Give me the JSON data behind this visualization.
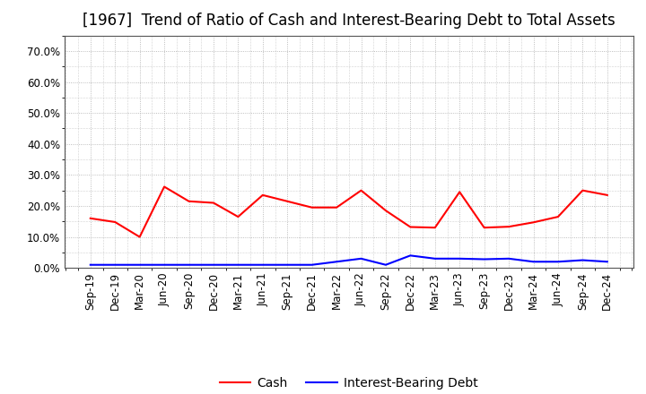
{
  "title": "[1967]  Trend of Ratio of Cash and Interest-Bearing Debt to Total Assets",
  "x_labels": [
    "Sep-19",
    "Dec-19",
    "Mar-20",
    "Jun-20",
    "Sep-20",
    "Dec-20",
    "Mar-21",
    "Jun-21",
    "Sep-21",
    "Dec-21",
    "Mar-22",
    "Jun-22",
    "Sep-22",
    "Dec-22",
    "Mar-23",
    "Jun-23",
    "Sep-23",
    "Dec-23",
    "Mar-24",
    "Jun-24",
    "Sep-24",
    "Dec-24"
  ],
  "cash": [
    0.16,
    0.148,
    0.1,
    0.262,
    0.215,
    0.21,
    0.165,
    0.235,
    0.215,
    0.195,
    0.195,
    0.25,
    0.185,
    0.132,
    0.13,
    0.245,
    0.13,
    0.133,
    0.147,
    0.165,
    0.25,
    0.235
  ],
  "interest_bearing_debt": [
    0.01,
    0.01,
    0.01,
    0.01,
    0.01,
    0.01,
    0.01,
    0.01,
    0.01,
    0.01,
    0.02,
    0.03,
    0.01,
    0.04,
    0.03,
    0.03,
    0.028,
    0.03,
    0.02,
    0.02,
    0.025,
    0.02
  ],
  "cash_color": "#FF0000",
  "debt_color": "#0000FF",
  "ylim": [
    0.0,
    0.75
  ],
  "yticks": [
    0.0,
    0.1,
    0.2,
    0.3,
    0.4,
    0.5,
    0.6,
    0.7
  ],
  "background_color": "#FFFFFF",
  "grid_color": "#AAAAAA",
  "legend_cash": "Cash",
  "legend_debt": "Interest-Bearing Debt",
  "title_fontsize": 12,
  "tick_fontsize": 8.5,
  "legend_fontsize": 10,
  "line_width": 1.5
}
